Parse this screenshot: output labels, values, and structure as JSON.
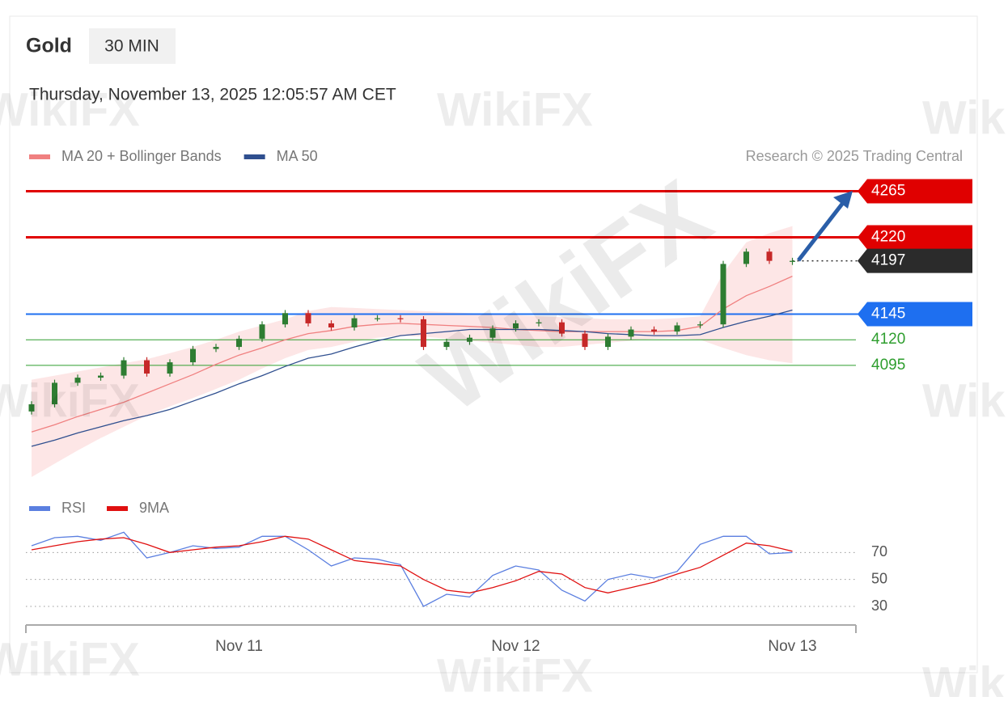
{
  "header": {
    "instrument": "Gold",
    "timeframe": "30 MIN",
    "timestamp": "Thursday, November 13, 2025 12:05:57 AM CET",
    "watermark": "WikiFX"
  },
  "chart_data": [
    {
      "type": "candlestick",
      "credit": "Research © 2025 Trading Central",
      "categories": [
        null,
        null,
        null,
        null,
        null,
        null,
        null,
        null,
        null,
        null,
        null,
        null,
        null,
        null,
        null,
        null,
        null,
        null,
        null,
        null,
        null,
        null,
        null,
        null,
        null,
        null,
        null,
        null,
        null,
        null,
        null,
        null,
        null,
        null
      ],
      "open": [
        4050,
        4057,
        4078,
        4083,
        4085,
        4100,
        4087,
        4098,
        4111,
        4113,
        4121,
        4135,
        4146,
        4136,
        4132,
        4141,
        4141,
        4140,
        4113,
        4118,
        4122,
        4131,
        4136,
        4137,
        4126,
        4113,
        4123,
        4130,
        4128,
        4134,
        4135,
        4194,
        4206,
        4196
      ],
      "high": [
        4060,
        4081,
        4086,
        4088,
        4103,
        4103,
        4101,
        4114,
        4116,
        4124,
        4138,
        4149,
        4149,
        4139,
        4144,
        4144,
        4144,
        4143,
        4121,
        4125,
        4134,
        4139,
        4140,
        4140,
        4129,
        4126,
        4133,
        4133,
        4137,
        4138,
        4197,
        4209,
        4209,
        4200
      ],
      "low": [
        4047,
        4054,
        4075,
        4080,
        4082,
        4084,
        4084,
        4095,
        4108,
        4110,
        4118,
        4132,
        4133,
        4129,
        4129,
        4138,
        4137,
        4110,
        4110,
        4115,
        4119,
        4128,
        4133,
        4123,
        4110,
        4110,
        4120,
        4125,
        4125,
        4131,
        4132,
        4191,
        4194,
        4193
      ],
      "close": [
        4057,
        4078,
        4083,
        4085,
        4100,
        4087,
        4098,
        4111,
        4113,
        4121,
        4135,
        4146,
        4136,
        4132,
        4141,
        4141,
        4140,
        4113,
        4118,
        4122,
        4131,
        4136,
        4137,
        4126,
        4113,
        4123,
        4130,
        4128,
        4134,
        4135,
        4194,
        4206,
        4197,
        4197
      ],
      "up_color": "#2e7d32",
      "down_color": "#c62828",
      "ylim": [
        3986,
        4278
      ],
      "series": [
        {
          "name": "MA 20 + Bollinger Bands",
          "color": "#f08080",
          "band_color": "#fde0e0",
          "values": [
            4030,
            4037,
            4045,
            4052,
            4059,
            4068,
            4077,
            4086,
            4096,
            4105,
            4112,
            4120,
            4126,
            4129,
            4133,
            4135,
            4136,
            4135,
            4134,
            4133,
            4132,
            4130,
            4129,
            4128,
            4128,
            4128,
            4128,
            4128,
            4129,
            4133,
            4150,
            4163,
            4172,
            4182
          ],
          "upper": [
            4081,
            4085,
            4089,
            4093,
            4097,
            4101,
            4107,
            4113,
            4120,
            4128,
            4134,
            4140,
            4148,
            4152,
            4151,
            4150,
            4149,
            4148,
            4147,
            4146,
            4145,
            4144,
            4143,
            4142,
            4141,
            4140,
            4140,
            4140,
            4141,
            4143,
            4185,
            4215,
            4224,
            4231
          ],
          "lower": [
            3986,
            3999,
            4012,
            4024,
            4035,
            4046,
            4055,
            4063,
            4072,
            4081,
            4092,
            4102,
            4110,
            4113,
            4118,
            4122,
            4124,
            4123,
            4121,
            4119,
            4117,
            4115,
            4113,
            4113,
            4115,
            4117,
            4119,
            4121,
            4122,
            4120,
            4112,
            4105,
            4100,
            4097
          ]
        },
        {
          "name": "MA 50",
          "color": "#2f4f8f",
          "values": [
            4016,
            4022,
            4029,
            4035,
            4041,
            4046,
            4052,
            4060,
            4068,
            4077,
            4085,
            4094,
            4102,
            4106,
            4113,
            4119,
            4124,
            4126,
            4128,
            4130,
            4130,
            4130,
            4130,
            4129,
            4128,
            4126,
            4125,
            4124,
            4124,
            4125,
            4132,
            4138,
            4143,
            4149
          ]
        }
      ],
      "levels": [
        {
          "value": 4265,
          "color": "#e00000",
          "line": "solid",
          "width": 3,
          "tag": true
        },
        {
          "value": 4220,
          "color": "#e00000",
          "line": "solid",
          "width": 3,
          "tag": true
        },
        {
          "value": 4197,
          "color": "#2b2b2b",
          "line": "dotted",
          "width": 1.5,
          "tag": true
        },
        {
          "value": 4145,
          "color": "#1e6ff0",
          "line": "solid",
          "width": 2,
          "tag": true
        },
        {
          "value": 4120,
          "color": "#2e9e2e",
          "line": "solid",
          "width": 1,
          "tag": false
        },
        {
          "value": 4095,
          "color": "#2e9e2e",
          "line": "solid",
          "width": 1,
          "tag": false
        }
      ]
    },
    {
      "type": "line",
      "categories": [
        null,
        null,
        null,
        null,
        null,
        null,
        null,
        null,
        null,
        "Nov 11",
        null,
        null,
        null,
        null,
        null,
        null,
        null,
        null,
        null,
        null,
        null,
        "Nov 12",
        null,
        null,
        null,
        null,
        null,
        null,
        null,
        null,
        null,
        null,
        null,
        "Nov 13"
      ],
      "ylim": [
        18,
        90
      ],
      "yticks": [
        30,
        50,
        70
      ],
      "grid": true,
      "series": [
        {
          "name": "RSI",
          "color": "#5b7fe0",
          "values": [
            75,
            81,
            82,
            79,
            85,
            66,
            70,
            75,
            73,
            74,
            82,
            82,
            72,
            60,
            66,
            65,
            61,
            30,
            39,
            37,
            53,
            60,
            57,
            42,
            34,
            50,
            54,
            51,
            56,
            76,
            82,
            82,
            69,
            70
          ]
        },
        {
          "name": "9MA",
          "color": "#e01010",
          "values": [
            72,
            75,
            78,
            80,
            81,
            76,
            70,
            72,
            74,
            75,
            78,
            82,
            80,
            72,
            64,
            62,
            60,
            50,
            42,
            40,
            44,
            49,
            56,
            54,
            44,
            40,
            44,
            48,
            54,
            59,
            68,
            77,
            75,
            71
          ]
        }
      ]
    }
  ]
}
